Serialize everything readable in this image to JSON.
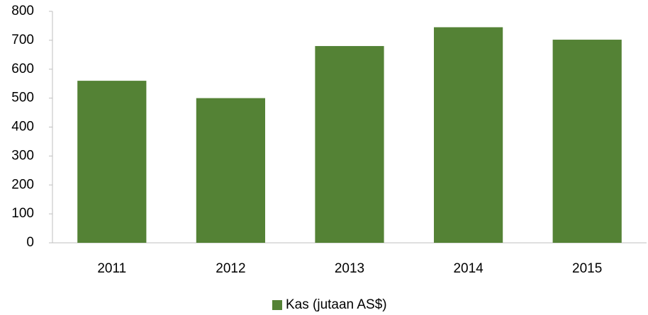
{
  "chart_data": {
    "type": "bar",
    "categories": [
      "2011",
      "2012",
      "2013",
      "2014",
      "2015"
    ],
    "series": [
      {
        "name": "Kas (jutaan AS$)",
        "color": "#548235",
        "values": [
          560,
          500,
          680,
          745,
          702
        ]
      }
    ],
    "ylim": [
      0,
      800
    ],
    "yticks": [
      0,
      100,
      200,
      300,
      400,
      500,
      600,
      700,
      800
    ],
    "grid": false,
    "legend": "bottom"
  }
}
